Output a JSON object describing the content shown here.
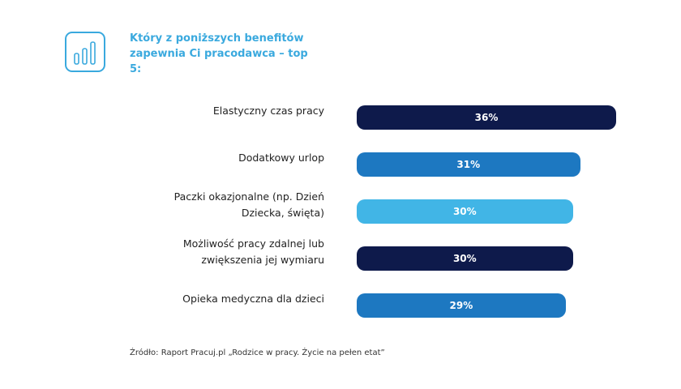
{
  "chart_data": {
    "type": "bar",
    "orientation": "horizontal",
    "title": "Który z poniższych benefitów zapewnia Ci pracodawca – top 5:",
    "categories": [
      "Elastyczny czas pracy",
      "Dodatkowy urlop",
      "Paczki okazjonalne (np. Dzień Dziecka, święta)",
      "Możliwość pracy zdalnej lub zwiększenia jej wymiaru",
      "Opieka medyczna dla dzieci"
    ],
    "values": [
      36,
      31,
      30,
      30,
      29
    ],
    "value_labels": [
      "36%",
      "31%",
      "30%",
      "30%",
      "29%"
    ],
    "colors": [
      "#0e1a4b",
      "#1d78c1",
      "#41b5e6",
      "#0e1a4b",
      "#1d78c1"
    ],
    "source": "Źródło: Raport Pracuj.pl „Rodzice w pracy. Życie na pełen etat”"
  }
}
